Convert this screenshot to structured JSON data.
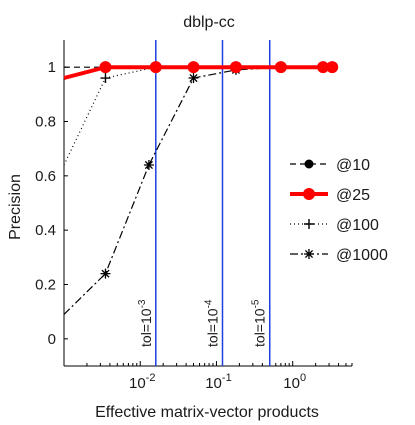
{
  "chart_data": {
    "type": "line",
    "title": "dblp-cc",
    "xlabel": "Effective matrix-vector products",
    "ylabel": "Precision",
    "x_scale": "log",
    "xlim": [
      0.001,
      6.0
    ],
    "ylim": [
      -0.1,
      1.1
    ],
    "x_ticks": [
      {
        "value": 0.01,
        "base": "10",
        "exp": "-2"
      },
      {
        "value": 0.1,
        "base": "10",
        "exp": "-1"
      },
      {
        "value": 1,
        "base": "10",
        "exp": "0"
      }
    ],
    "y_ticks": [
      0,
      0.2,
      0.4,
      0.6,
      0.8,
      1
    ],
    "y_tick_labels": [
      "0",
      "0.2",
      "0.4",
      "0.6",
      "0.8",
      "1"
    ],
    "grid": false,
    "legend_position": "right",
    "series": [
      {
        "name": "@10",
        "color": "#000000",
        "style": "dashed",
        "marker": "dot",
        "x": [
          0.0035,
          0.016,
          0.05,
          0.18,
          0.7,
          2.5,
          3.3
        ],
        "y": [
          1,
          1,
          1,
          1,
          1,
          1,
          1
        ]
      },
      {
        "name": "@25",
        "color": "#ff0000",
        "style": "solid-thick",
        "marker": "dot",
        "x": [
          0.0035,
          0.016,
          0.05,
          0.18,
          0.7,
          2.5,
          3.3
        ],
        "y": [
          1,
          1,
          1,
          1,
          1,
          1,
          1
        ]
      },
      {
        "name": "@100",
        "color": "#000000",
        "style": "dashdot",
        "marker": "plus",
        "x": [
          0.0035,
          0.016,
          0.05,
          0.18,
          0.7,
          2.5,
          3.3
        ],
        "y": [
          0.96,
          1,
          1,
          1,
          1,
          1,
          1
        ]
      },
      {
        "name": "@1000",
        "color": "#000000",
        "style": "dotted",
        "marker": "star",
        "x": [
          0.0035,
          0.013,
          0.05,
          0.18,
          0.7,
          2.5,
          3.3
        ],
        "y": [
          0.24,
          0.64,
          0.96,
          0.99,
          1,
          1,
          1
        ]
      }
    ],
    "vertical_lines": [
      {
        "x": 0.016,
        "color": "#1f3fe0",
        "label_prefix": "tol=10",
        "label_exp": "-3"
      },
      {
        "x": 0.12,
        "color": "#1f3fe0",
        "label_prefix": "tol=10",
        "label_exp": "-4"
      },
      {
        "x": 0.5,
        "color": "#1f3fe0",
        "label_prefix": "tol=10",
        "label_exp": "-5"
      }
    ]
  }
}
